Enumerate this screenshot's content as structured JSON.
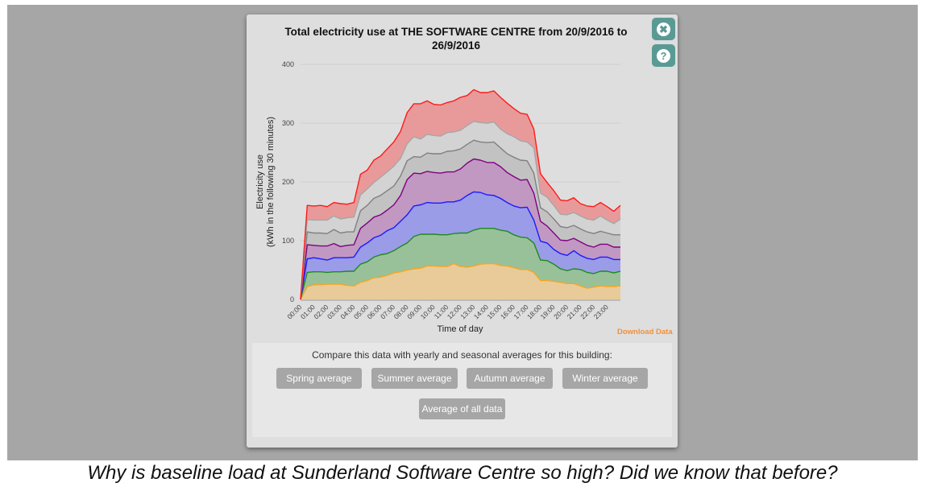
{
  "caption": "Why is baseline load at Sunderland Software Centre so high? Did we know that before?",
  "modal": {
    "close_icon": "close-icon",
    "help_icon": "help-icon",
    "close_glyph": "✖",
    "help_glyph": "?",
    "download_label": "Download Data",
    "compare": {
      "text": "Compare this data with yearly and seasonal averages for this building:",
      "buttons": [
        "Spring average",
        "Summer average",
        "Autumn average",
        "Winter average",
        "Average of all data"
      ]
    }
  },
  "colors": {
    "accent": "#5a9a94",
    "download": "#f0903a",
    "button": "#a6a6a6"
  },
  "chart_data": {
    "type": "area",
    "stacked": true,
    "title": "Total electricity use at THE SOFTWARE CENTRE from 20/9/2016 to 26/9/2016",
    "xlabel": "Time of day",
    "ylabel": [
      "Electricity use",
      "(kWh in the following 30 minutes)"
    ],
    "ylim": [
      0,
      400
    ],
    "yticks": [
      0,
      100,
      200,
      300,
      400
    ],
    "xticks": [
      "00:00",
      "01:00",
      "02:00",
      "03:00",
      "04:00",
      "05:00",
      "06:00",
      "07:00",
      "08:00",
      "09:00",
      "10:00",
      "11:00",
      "12:00",
      "13:00",
      "14:00",
      "15:00",
      "16:00",
      "17:00",
      "18:00",
      "19:00",
      "20:00",
      "21:00",
      "22:00",
      "23:00"
    ],
    "x_step": "30 minutes",
    "grid": true,
    "series": [
      {
        "color": "#f5a623",
        "fill": "#e8cb98",
        "values": [
          0,
          22,
          25,
          25,
          26,
          26,
          26,
          24,
          23,
          29,
          32,
          37,
          38,
          41,
          45,
          47,
          50,
          52,
          53,
          57,
          57,
          56,
          56,
          61,
          56,
          55,
          57,
          60,
          61,
          61,
          58,
          57,
          54,
          51,
          51,
          46,
          32,
          32,
          31,
          29,
          27,
          27,
          23,
          19,
          21,
          23,
          22,
          22,
          23
        ]
      },
      {
        "color": "#1e8a1e",
        "fill": "#98c19a",
        "values": [
          0,
          24,
          22,
          22,
          20,
          21,
          21,
          24,
          25,
          31,
          32,
          35,
          38,
          37,
          38,
          43,
          46,
          55,
          58,
          54,
          54,
          54,
          54,
          51,
          57,
          58,
          61,
          61,
          60,
          60,
          60,
          59,
          56,
          55,
          54,
          50,
          35,
          34,
          29,
          23,
          22,
          25,
          28,
          27,
          23,
          25,
          26,
          23,
          25
        ]
      },
      {
        "color": "#1a1aff",
        "fill": "#9a9ce8",
        "values": [
          0,
          23,
          24,
          22,
          21,
          24,
          24,
          23,
          24,
          29,
          32,
          33,
          33,
          39,
          39,
          43,
          48,
          52,
          50,
          54,
          53,
          54,
          56,
          54,
          56,
          64,
          65,
          61,
          57,
          56,
          54,
          49,
          49,
          50,
          52,
          39,
          32,
          30,
          25,
          26,
          26,
          31,
          24,
          24,
          24,
          24,
          24,
          23,
          20
        ]
      },
      {
        "color": "#800080",
        "fill": "#c198c2",
        "values": [
          0,
          24,
          21,
          22,
          24,
          24,
          19,
          21,
          21,
          32,
          34,
          35,
          35,
          35,
          39,
          44,
          60,
          56,
          53,
          53,
          52,
          51,
          51,
          51,
          53,
          55,
          56,
          55,
          55,
          56,
          54,
          51,
          50,
          47,
          47,
          46,
          34,
          29,
          28,
          23,
          25,
          21,
          23,
          22,
          21,
          22,
          22,
          21,
          21
        ]
      },
      {
        "color": "#808080",
        "fill": "#c2c2c2",
        "values": [
          0,
          22,
          21,
          22,
          21,
          24,
          23,
          23,
          22,
          30,
          30,
          32,
          33,
          33,
          32,
          33,
          32,
          28,
          28,
          31,
          32,
          33,
          35,
          36,
          34,
          32,
          32,
          31,
          34,
          35,
          32,
          32,
          33,
          34,
          32,
          34,
          23,
          24,
          24,
          23,
          22,
          22,
          22,
          23,
          23,
          22,
          19,
          21,
          21
        ]
      },
      {
        "color": "#a6a6a6",
        "fill": "#d3d3d3",
        "values": [
          0,
          21,
          22,
          22,
          23,
          23,
          24,
          24,
          25,
          27,
          28,
          27,
          31,
          32,
          34,
          30,
          29,
          34,
          31,
          32,
          31,
          30,
          32,
          32,
          32,
          32,
          32,
          33,
          33,
          34,
          32,
          34,
          35,
          33,
          32,
          43,
          25,
          25,
          23,
          21,
          22,
          22,
          22,
          22,
          23,
          26,
          22,
          19,
          27
        ]
      },
      {
        "color": "#ff1a1a",
        "fill": "#e89a9a",
        "values": [
          0,
          24,
          24,
          25,
          23,
          23,
          26,
          23,
          25,
          35,
          32,
          38,
          36,
          39,
          41,
          46,
          53,
          56,
          60,
          57,
          53,
          53,
          51,
          53,
          56,
          51,
          54,
          51,
          52,
          53,
          54,
          52,
          48,
          47,
          47,
          32,
          33,
          25,
          25,
          24,
          24,
          25,
          21,
          22,
          23,
          23,
          23,
          21,
          23
        ]
      }
    ]
  }
}
